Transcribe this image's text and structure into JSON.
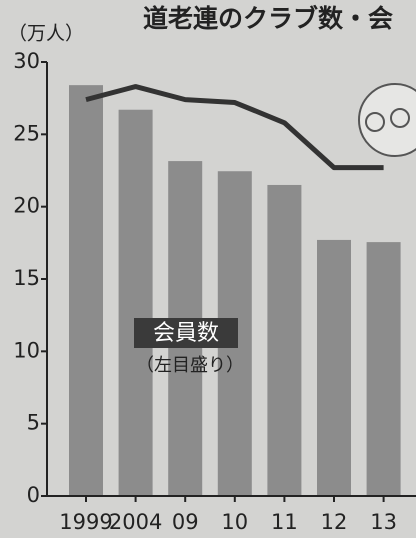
{
  "chart_data": {
    "type": "bar",
    "title": "道老連のクラブ数・会",
    "y_label": "（万人）",
    "categories": [
      "1999",
      "2004",
      "09",
      "10",
      "11",
      "12",
      "13"
    ],
    "series": [
      {
        "name": "会員数",
        "type": "bar",
        "color": "#8c8c8c",
        "values": [
          28.4,
          26.7,
          23.15,
          22.45,
          21.5,
          17.7,
          17.55
        ]
      },
      {
        "type": "line",
        "color": "#333333",
        "values": [
          27.4,
          28.3,
          27.4,
          27.2,
          25.8,
          22.7,
          22.7
        ]
      }
    ],
    "annotation": "（左目盛り）",
    "ylim": [
      0,
      30
    ],
    "yticks": [
      0,
      5,
      10,
      15,
      20,
      25,
      30
    ]
  }
}
